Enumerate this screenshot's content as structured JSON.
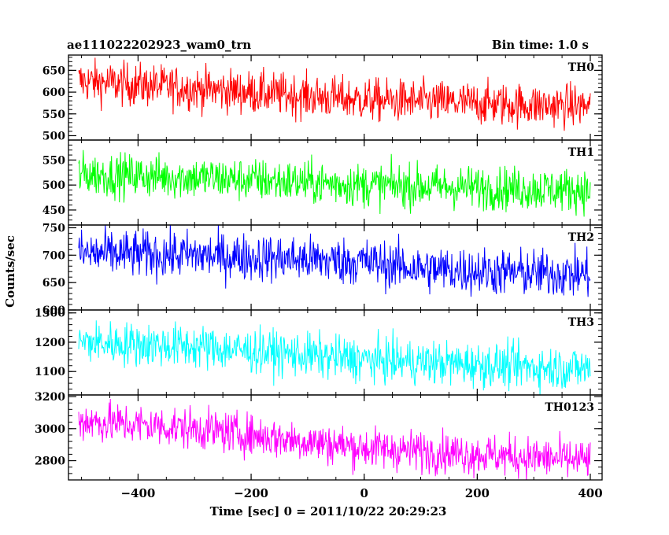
{
  "chart_data": {
    "type": "line",
    "title": "ae111022202923_wam0_trn",
    "subtitle": "Bin time: 1.0 s",
    "xlabel": "Time [sec] 0 = 2011/10/22 20:29:23",
    "ylabel": "Counts/sec",
    "xlim": [
      -505,
      400
    ],
    "x_ticks": [
      "−400",
      "−200",
      "0",
      "200",
      "400"
    ],
    "x_tick_values": [
      -400,
      -200,
      0,
      200,
      400
    ],
    "bin_time_s": 1.0,
    "panels": [
      {
        "name": "TH0",
        "color": "#ff0000",
        "ylim": [
          490,
          685
        ],
        "yticks": [
          500,
          550,
          600,
          650
        ],
        "ytick_labels": [
          "500",
          "550",
          "600",
          "650"
        ],
        "trend": {
          "x": [
            -505,
            -300,
            0,
            300,
            400
          ],
          "y": [
            625,
            608,
            582,
            570,
            568
          ]
        },
        "noise": 25
      },
      {
        "name": "TH1",
        "color": "#00ff00",
        "ylim": [
          420,
          590
        ],
        "yticks": [
          450,
          500,
          550
        ],
        "ytick_labels": [
          "450",
          "500",
          "550"
        ],
        "trend": {
          "x": [
            -505,
            -300,
            0,
            300,
            400
          ],
          "y": [
            522,
            515,
            500,
            492,
            490
          ]
        },
        "noise": 22
      },
      {
        "name": "TH2",
        "color": "#0000ff",
        "ylim": [
          600,
          755
        ],
        "yticks": [
          600,
          650,
          700,
          750
        ],
        "ytick_labels": [
          "600",
          "650",
          "700",
          "750"
        ],
        "trend": {
          "x": [
            -505,
            -300,
            0,
            100,
            300,
            400
          ],
          "y": [
            703,
            700,
            688,
            675,
            667,
            665
          ]
        },
        "noise": 22
      },
      {
        "name": "TH3",
        "color": "#00ffff",
        "ylim": [
          1020,
          1310
        ],
        "yticks": [
          1100,
          1200,
          1300
        ],
        "ytick_labels": [
          "1100",
          "1200",
          "1300"
        ],
        "trend": {
          "x": [
            -505,
            -300,
            0,
            300,
            400
          ],
          "y": [
            1200,
            1185,
            1140,
            1115,
            1110
          ]
        },
        "noise": 38
      },
      {
        "name": "TH0123",
        "color": "#ff00ff",
        "ylim": [
          2680,
          3210
        ],
        "yticks": [
          2800,
          3000,
          3200
        ],
        "ytick_labels": [
          "2800",
          "3000",
          "3200"
        ],
        "trend": {
          "x": [
            -505,
            -300,
            0,
            300,
            400
          ],
          "y": [
            3050,
            3000,
            2880,
            2820,
            2800
          ]
        },
        "noise": 65
      }
    ]
  }
}
